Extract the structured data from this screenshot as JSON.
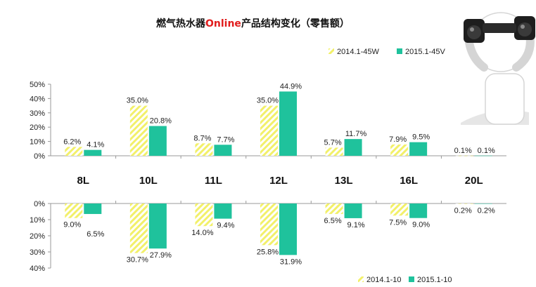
{
  "title": {
    "prefix": "燃气热水器",
    "highlight": "Online",
    "suffix": "产品结构变化（零售额）",
    "highlight_color": "#e11d1d"
  },
  "colors": {
    "series_a": "#f2f06a",
    "series_b": "#1fc29c",
    "axis": "#999999"
  },
  "chart_data": [
    {
      "type": "bar",
      "categories": [
        "8L",
        "10L",
        "11L",
        "12L",
        "13L",
        "16L",
        "20L"
      ],
      "series": [
        {
          "name": "2014.1-45W",
          "values": [
            6.2,
            35.0,
            8.7,
            35.0,
            5.7,
            7.9,
            0.1
          ],
          "labels": [
            "6.2%",
            "35.0%",
            "8.7%",
            "35.0%",
            "5.7%",
            "7.9%",
            "0.1%"
          ]
        },
        {
          "name": "2015.1-45V",
          "values": [
            4.1,
            20.8,
            7.7,
            44.9,
            11.7,
            9.5,
            0.1
          ],
          "labels": [
            "4.1%",
            "20.8%",
            "7.7%",
            "44.9%",
            "11.7%",
            "9.5%",
            "0.1%"
          ]
        }
      ],
      "yticks": [
        "50%",
        "40%",
        "30%",
        "20%",
        "10%",
        "0%"
      ],
      "ylim": [
        0,
        50
      ],
      "legend": "top-right"
    },
    {
      "type": "bar",
      "categories": [
        "8L",
        "10L",
        "11L",
        "12L",
        "13L",
        "16L",
        "20L"
      ],
      "series": [
        {
          "name": "2014.1-10",
          "values": [
            9.0,
            30.7,
            14.0,
            25.8,
            6.5,
            7.5,
            0.2
          ],
          "labels": [
            "9.0%",
            "30.7%",
            "14.0%",
            "25.8%",
            "6.5%",
            "7.5%",
            "0.2%"
          ]
        },
        {
          "name": "2015.1-10",
          "values": [
            6.5,
            27.9,
            9.4,
            31.9,
            9.1,
            9.0,
            0.2
          ],
          "labels": [
            "6.5%",
            "27.9%",
            "9.4%",
            "31.9%",
            "9.1%",
            "9.0%",
            "0.2%"
          ]
        }
      ],
      "yticks": [
        "0%",
        "10%",
        "20%",
        "30%",
        "40%"
      ],
      "ylim": [
        0,
        40
      ],
      "inverted": true,
      "legend": "bottom-right"
    }
  ],
  "illustration": {
    "icon": "person-with-binoculars"
  }
}
